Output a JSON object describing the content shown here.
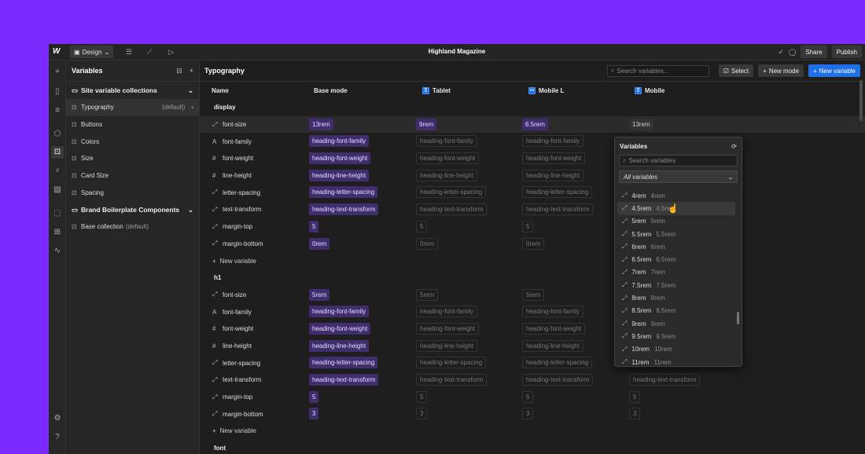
{
  "topbar": {
    "mode": "Design",
    "title": "Highland Magazine",
    "share_label": "Share",
    "publish_label": "Publish"
  },
  "sidebar": {
    "title": "Variables",
    "site_section": "Site variable collections",
    "collections": [
      {
        "label": "Typography",
        "meta": "(default)"
      },
      {
        "label": "Buttons"
      },
      {
        "label": "Colors"
      },
      {
        "label": "Size"
      },
      {
        "label": "Card Size"
      },
      {
        "label": "Spacing"
      }
    ],
    "brand_section": "Brand Boilerplate Components",
    "brand_items": [
      {
        "label": "Base collection",
        "meta": "(default)"
      }
    ]
  },
  "main": {
    "title": "Typography",
    "search_placeholder": "Search variables...",
    "select_label": "Select",
    "new_mode_label": "New mode",
    "new_variable_label": "New variable",
    "columns": [
      "Name",
      "Base mode",
      "Tablet",
      "Mobile L",
      "Mobile"
    ],
    "new_variable_row": "New variable",
    "groups": [
      {
        "name": "display",
        "rows": [
          {
            "icon": "size",
            "name": "font-size",
            "base": "13rem",
            "tablet": "9rem",
            "mobile_l": "6.5rem",
            "mobile": "13rem"
          },
          {
            "icon": "font",
            "name": "font-family",
            "base": "heading-font-family",
            "tablet": "heading-font-family",
            "mobile_l": "heading-font-family",
            "mobile": ""
          },
          {
            "icon": "hash",
            "name": "font-weight",
            "base": "heading-font-weight",
            "tablet": "heading-font-weight",
            "mobile_l": "heading-font-weight",
            "mobile": ""
          },
          {
            "icon": "hash",
            "name": "line-height",
            "base": "heading-line-height",
            "tablet": "heading-line-height",
            "mobile_l": "heading-line-height",
            "mobile": ""
          },
          {
            "icon": "size",
            "name": "letter-spacing",
            "base": "heading-letter-spacing",
            "tablet": "heading-letter-spacing",
            "mobile_l": "heading-letter-spacing",
            "mobile": ""
          },
          {
            "icon": "size",
            "name": "text-transform",
            "base": "heading-text-transform",
            "tablet": "heading-text-transform",
            "mobile_l": "heading-text-transform",
            "mobile": ""
          },
          {
            "icon": "size",
            "name": "margin-top",
            "base": "5",
            "tablet": "5",
            "mobile_l": "5",
            "mobile": ""
          },
          {
            "icon": "size",
            "name": "margin-bottom",
            "base": "0rem",
            "tablet": "0rem",
            "mobile_l": "0rem",
            "mobile": ""
          }
        ]
      },
      {
        "name": "h1",
        "rows": [
          {
            "icon": "size",
            "name": "font-size",
            "base": "5rem",
            "tablet": "5rem",
            "mobile_l": "5rem",
            "mobile": ""
          },
          {
            "icon": "font",
            "name": "font-family",
            "base": "heading-font-family",
            "tablet": "heading-font-family",
            "mobile_l": "heading-font-family",
            "mobile": ""
          },
          {
            "icon": "hash",
            "name": "font-weight",
            "base": "heading-font-weight",
            "tablet": "heading-font-weight",
            "mobile_l": "heading-font-weight",
            "mobile": ""
          },
          {
            "icon": "hash",
            "name": "line-height",
            "base": "heading-line-height",
            "tablet": "heading-line-height",
            "mobile_l": "heading-line-height",
            "mobile": ""
          },
          {
            "icon": "size",
            "name": "letter-spacing",
            "base": "heading-letter-spacing",
            "tablet": "heading-letter-spacing",
            "mobile_l": "heading-letter-spacing",
            "mobile": ""
          },
          {
            "icon": "size",
            "name": "text-transform",
            "base": "heading-text-transform",
            "tablet": "heading-text-transform",
            "mobile_l": "heading-text-transform",
            "mobile": "heading-text-transform"
          },
          {
            "icon": "size",
            "name": "margin-top",
            "base": "5",
            "tablet": "5",
            "mobile_l": "5",
            "mobile": "5"
          },
          {
            "icon": "size",
            "name": "margin-bottom",
            "base": "3",
            "tablet": "3",
            "mobile_l": "3",
            "mobile": "3"
          }
        ]
      },
      {
        "name": "font",
        "rows": []
      }
    ]
  },
  "popup": {
    "title": "Variables",
    "search_placeholder": "Search variables",
    "filter": "All variables",
    "items": [
      {
        "name": "4rem",
        "value": "4rem"
      },
      {
        "name": "4.5rem",
        "value": "4.5rem"
      },
      {
        "name": "5rem",
        "value": "5rem"
      },
      {
        "name": "5.5rem",
        "value": "5.5rem"
      },
      {
        "name": "6rem",
        "value": "6rem"
      },
      {
        "name": "6.5rem",
        "value": "6.5rem"
      },
      {
        "name": "7rem",
        "value": "7rem"
      },
      {
        "name": "7.5rem",
        "value": "7.5rem"
      },
      {
        "name": "8rem",
        "value": "8rem"
      },
      {
        "name": "8.5rem",
        "value": "8.5rem"
      },
      {
        "name": "9rem",
        "value": "9rem"
      },
      {
        "name": "9.5rem",
        "value": "9.5rem"
      },
      {
        "name": "10rem",
        "value": "10rem"
      },
      {
        "name": "11rem",
        "value": "11rem"
      }
    ]
  },
  "colors": {
    "background": "#7b2bff",
    "accent": "#1e6fe8",
    "alias_chip": "#3f2d6e"
  }
}
